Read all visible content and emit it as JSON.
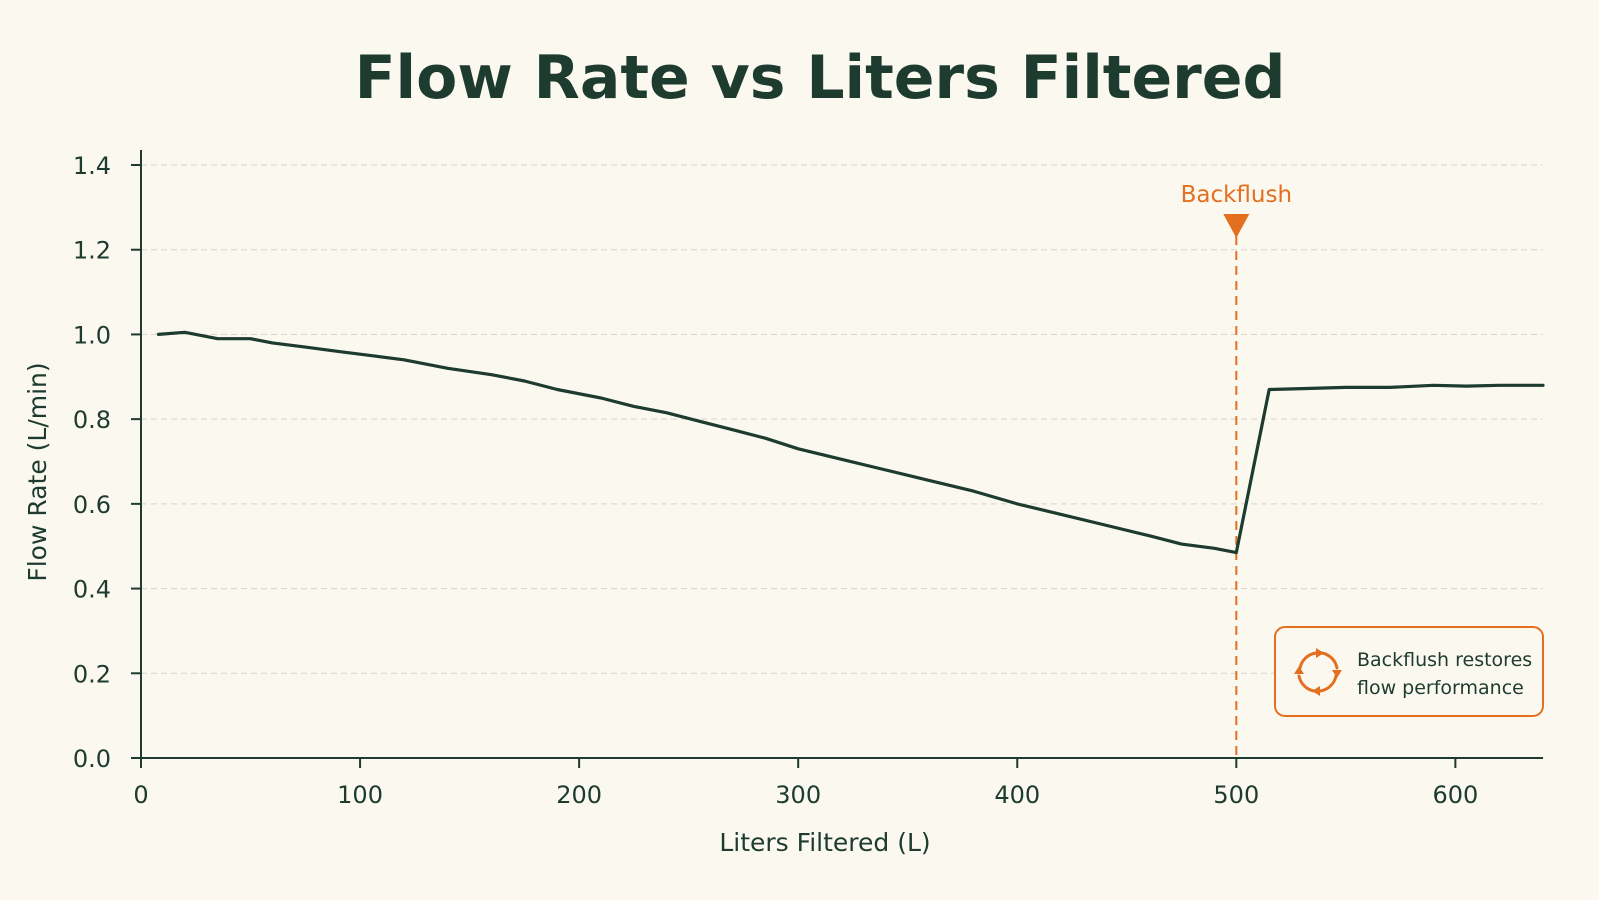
{
  "chart_data": {
    "type": "line",
    "title": "Flow Rate vs Liters Filtered",
    "xlabel": "Liters Filtered (L)",
    "ylabel": "Flow Rate (L/min)",
    "xlim": [
      0,
      640
    ],
    "ylim": [
      0,
      1.4
    ],
    "x_ticks": [
      0,
      100,
      200,
      300,
      400,
      500,
      600
    ],
    "x_tick_labels": [
      "0",
      "100",
      "200",
      "300",
      "400",
      "500",
      "600"
    ],
    "y_ticks": [
      0,
      0.2,
      0.4,
      0.6,
      0.8,
      1.0,
      1.2,
      1.4
    ],
    "y_tick_labels": [
      "0.0",
      "0.2",
      "0.4",
      "0.6",
      "0.8",
      "1.0",
      "1.2",
      "1.4"
    ],
    "grid": "horizontal",
    "series": [
      {
        "color": "#1d3b2e",
        "x": [
          8,
          20,
          25,
          35,
          50,
          60,
          75,
          90,
          105,
          120,
          140,
          160,
          175,
          190,
          210,
          225,
          240,
          255,
          270,
          285,
          300,
          320,
          340,
          360,
          380,
          400,
          420,
          440,
          460,
          475,
          490,
          500,
          515,
          530,
          550,
          570,
          590,
          605,
          620,
          640
        ],
        "y": [
          1.0,
          1.005,
          1.0,
          0.99,
          0.99,
          0.98,
          0.97,
          0.96,
          0.95,
          0.94,
          0.92,
          0.905,
          0.89,
          0.87,
          0.85,
          0.83,
          0.815,
          0.795,
          0.775,
          0.755,
          0.73,
          0.705,
          0.68,
          0.655,
          0.63,
          0.6,
          0.575,
          0.55,
          0.525,
          0.505,
          0.495,
          0.485,
          0.87,
          0.872,
          0.875,
          0.875,
          0.88,
          0.878,
          0.88,
          0.88
        ]
      }
    ],
    "annotations": [
      {
        "type": "vline",
        "x": 500,
        "label": "Backflush",
        "color": "#e46f1f"
      }
    ]
  },
  "callout": {
    "line1": "Backflush restores",
    "line2": "flow performance",
    "icon": "refresh-cycle-icon",
    "border_color": "#e46f1f"
  }
}
